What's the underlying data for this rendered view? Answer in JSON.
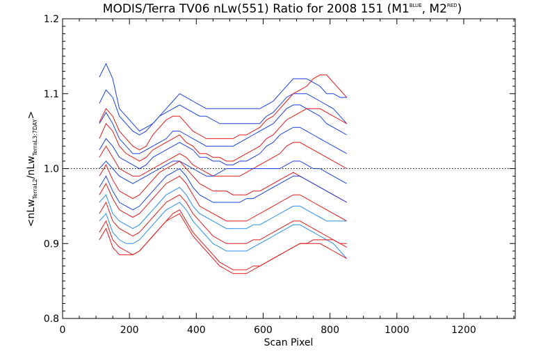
{
  "chart_data": {
    "type": "line",
    "title": "MODIS/Terra TV06 nLw(551) Ratio for 2008 151 (M1",
    "title_sup1": "BLUE",
    "title_mid": ", M2",
    "title_sup2": "RED",
    "title_end": ")",
    "xlabel": "Scan Pixel",
    "ylabel_parts": {
      "a": "<nLw",
      "a_sub": "TerraL2",
      "b": "/nLw",
      "b_sub": "TerraL3:7DAY",
      "c": ">"
    },
    "xlim": [
      0,
      1354
    ],
    "ylim": [
      0.8,
      1.2
    ],
    "x_ticks": [
      "0",
      "200",
      "400",
      "600",
      "800",
      "1000",
      "1200"
    ],
    "x_tick_values": [
      0,
      200,
      400,
      600,
      800,
      1000,
      1200
    ],
    "y_ticks": [
      "0.8",
      "0.9",
      "1.0",
      "1.1",
      "1.2"
    ],
    "y_tick_values": [
      0.8,
      0.9,
      1.0,
      1.1,
      1.2
    ],
    "reference_line": 1.0,
    "grid": false,
    "colors": {
      "blue": "#1a3fe0",
      "red": "#e01818",
      "light_blue": "#2a8fe8",
      "axis": "#000000"
    },
    "x_start": 110,
    "x_step": 20,
    "series": [
      {
        "color": "blue",
        "values": [
          1.122,
          1.14,
          1.12,
          1.08,
          1.07,
          1.06,
          1.05,
          1.055,
          1.06,
          1.07,
          1.08,
          1.09,
          1.1,
          1.095,
          1.09,
          1.085,
          1.08,
          1.08,
          1.08,
          1.08,
          1.08,
          1.08,
          1.08,
          1.08,
          1.08,
          1.085,
          1.09,
          1.1,
          1.11,
          1.12,
          1.12,
          1.12,
          1.115,
          1.11,
          1.1,
          1.1,
          1.095,
          1.095
        ]
      },
      {
        "color": "blue",
        "values": [
          1.087,
          1.105,
          1.095,
          1.07,
          1.06,
          1.05,
          1.045,
          1.05,
          1.06,
          1.07,
          1.075,
          1.08,
          1.085,
          1.08,
          1.075,
          1.07,
          1.07,
          1.065,
          1.06,
          1.06,
          1.06,
          1.06,
          1.06,
          1.06,
          1.06,
          1.07,
          1.075,
          1.085,
          1.095,
          1.1,
          1.1,
          1.1,
          1.095,
          1.09,
          1.085,
          1.08,
          1.07,
          1.06
        ]
      },
      {
        "color": "red",
        "values": [
          1.062,
          1.08,
          1.07,
          1.05,
          1.04,
          1.03,
          1.025,
          1.03,
          1.045,
          1.055,
          1.065,
          1.07,
          1.07,
          1.06,
          1.05,
          1.045,
          1.04,
          1.04,
          1.04,
          1.04,
          1.04,
          1.045,
          1.045,
          1.05,
          1.055,
          1.065,
          1.07,
          1.08,
          1.09,
          1.1,
          1.105,
          1.11,
          1.12,
          1.125,
          1.125,
          1.115,
          1.105,
          1.095
        ]
      },
      {
        "color": "blue",
        "values": [
          1.06,
          1.075,
          1.06,
          1.04,
          1.03,
          1.02,
          1.02,
          1.025,
          1.03,
          1.035,
          1.04,
          1.05,
          1.05,
          1.045,
          1.04,
          1.035,
          1.03,
          1.03,
          1.03,
          1.03,
          1.03,
          1.035,
          1.04,
          1.045,
          1.05,
          1.055,
          1.06,
          1.07,
          1.08,
          1.085,
          1.085,
          1.08,
          1.075,
          1.07,
          1.06,
          1.055,
          1.05,
          1.045
        ]
      },
      {
        "color": "red",
        "values": [
          1.04,
          1.06,
          1.05,
          1.03,
          1.02,
          1.015,
          1.01,
          1.015,
          1.025,
          1.03,
          1.035,
          1.04,
          1.045,
          1.035,
          1.03,
          1.02,
          1.02,
          1.015,
          1.015,
          1.01,
          1.01,
          1.015,
          1.02,
          1.025,
          1.03,
          1.04,
          1.045,
          1.055,
          1.065,
          1.07,
          1.075,
          1.08,
          1.08,
          1.08,
          1.075,
          1.07,
          1.065,
          1.06
        ]
      },
      {
        "color": "blue",
        "values": [
          1.025,
          1.04,
          1.03,
          1.015,
          1.01,
          1.005,
          1.0,
          1.005,
          1.015,
          1.02,
          1.025,
          1.03,
          1.035,
          1.03,
          1.025,
          1.015,
          1.015,
          1.01,
          1.01,
          1.005,
          1.005,
          1.01,
          1.01,
          1.015,
          1.02,
          1.03,
          1.035,
          1.045,
          1.05,
          1.055,
          1.055,
          1.05,
          1.045,
          1.04,
          1.035,
          1.03,
          1.025,
          1.02
        ]
      },
      {
        "color": "red",
        "values": [
          1.015,
          1.03,
          1.015,
          1.0,
          0.995,
          0.99,
          0.99,
          0.995,
          1.0,
          1.005,
          1.01,
          1.015,
          1.02,
          1.015,
          1.005,
          1.0,
          0.995,
          0.99,
          0.99,
          0.99,
          0.99,
          0.99,
          0.995,
          1.0,
          1.005,
          1.01,
          1.015,
          1.02,
          1.03,
          1.035,
          1.035,
          1.03,
          1.025,
          1.02,
          1.015,
          1.01,
          1.005,
          1.0
        ]
      },
      {
        "color": "blue",
        "values": [
          1.0,
          1.01,
          1.0,
          0.99,
          0.985,
          0.98,
          0.985,
          0.99,
          0.995,
          1.0,
          1.005,
          1.01,
          1.01,
          1.005,
          1.0,
          0.995,
          0.99,
          0.99,
          0.995,
          1.0,
          1.0,
          1.0,
          1.0,
          1.0,
          1.0,
          1.0,
          1.0,
          1.0,
          1.005,
          1.01,
          1.01,
          1.005,
          1.0,
          1.0,
          0.995,
          0.99,
          0.985,
          0.98
        ]
      },
      {
        "color": "red",
        "values": [
          0.99,
          1.005,
          0.985,
          0.97,
          0.965,
          0.96,
          0.965,
          0.975,
          0.985,
          0.995,
          1.0,
          1.005,
          1.01,
          1.0,
          0.99,
          0.98,
          0.975,
          0.97,
          0.97,
          0.97,
          0.965,
          0.965,
          0.965,
          0.97,
          0.97,
          0.975,
          0.98,
          0.985,
          0.99,
          0.995,
          0.99,
          0.985,
          0.98,
          0.975,
          0.97,
          0.965,
          0.96,
          0.955
        ]
      },
      {
        "color": "blue",
        "values": [
          0.975,
          0.99,
          0.97,
          0.955,
          0.95,
          0.945,
          0.95,
          0.96,
          0.97,
          0.98,
          0.99,
          0.995,
          1.0,
          0.99,
          0.975,
          0.965,
          0.96,
          0.955,
          0.955,
          0.955,
          0.955,
          0.955,
          0.96,
          0.96,
          0.965,
          0.97,
          0.975,
          0.98,
          0.985,
          0.99,
          0.99,
          0.985,
          0.98,
          0.975,
          0.97,
          0.965,
          0.96,
          0.955
        ]
      },
      {
        "color": "red",
        "values": [
          0.965,
          0.98,
          0.96,
          0.945,
          0.94,
          0.935,
          0.94,
          0.95,
          0.96,
          0.97,
          0.98,
          0.985,
          0.99,
          0.98,
          0.965,
          0.95,
          0.945,
          0.94,
          0.935,
          0.93,
          0.93,
          0.93,
          0.93,
          0.935,
          0.94,
          0.945,
          0.95,
          0.955,
          0.96,
          0.965,
          0.965,
          0.96,
          0.955,
          0.95,
          0.945,
          0.94,
          0.935,
          0.93
        ]
      },
      {
        "color": "light_blue",
        "values": [
          0.955,
          0.965,
          0.94,
          0.93,
          0.925,
          0.92,
          0.925,
          0.935,
          0.945,
          0.955,
          0.965,
          0.97,
          0.975,
          0.965,
          0.95,
          0.94,
          0.935,
          0.93,
          0.925,
          0.92,
          0.92,
          0.92,
          0.92,
          0.925,
          0.925,
          0.93,
          0.935,
          0.94,
          0.945,
          0.95,
          0.95,
          0.945,
          0.94,
          0.935,
          0.93,
          0.93,
          0.93,
          0.93
        ]
      },
      {
        "color": "red",
        "values": [
          0.94,
          0.955,
          0.93,
          0.92,
          0.915,
          0.91,
          0.915,
          0.925,
          0.935,
          0.945,
          0.955,
          0.96,
          0.965,
          0.955,
          0.94,
          0.93,
          0.92,
          0.91,
          0.905,
          0.9,
          0.9,
          0.9,
          0.9,
          0.905,
          0.905,
          0.91,
          0.915,
          0.92,
          0.925,
          0.93,
          0.93,
          0.925,
          0.92,
          0.915,
          0.91,
          0.905,
          0.9,
          0.9
        ]
      },
      {
        "color": "light_blue",
        "values": [
          0.93,
          0.94,
          0.915,
          0.905,
          0.9,
          0.9,
          0.905,
          0.915,
          0.925,
          0.935,
          0.945,
          0.95,
          0.955,
          0.945,
          0.93,
          0.92,
          0.91,
          0.9,
          0.895,
          0.89,
          0.89,
          0.89,
          0.89,
          0.895,
          0.9,
          0.905,
          0.91,
          0.915,
          0.92,
          0.925,
          0.925,
          0.92,
          0.915,
          0.91,
          0.905,
          0.9,
          0.89,
          0.88
        ]
      },
      {
        "color": "red",
        "values": [
          0.915,
          0.93,
          0.905,
          0.895,
          0.89,
          0.885,
          0.89,
          0.9,
          0.91,
          0.92,
          0.93,
          0.94,
          0.945,
          0.93,
          0.915,
          0.905,
          0.895,
          0.885,
          0.875,
          0.87,
          0.865,
          0.865,
          0.865,
          0.87,
          0.87,
          0.875,
          0.88,
          0.885,
          0.89,
          0.895,
          0.9,
          0.9,
          0.905,
          0.905,
          0.905,
          0.905,
          0.9,
          0.895
        ]
      },
      {
        "color": "red",
        "values": [
          0.905,
          0.92,
          0.895,
          0.885,
          0.885,
          0.885,
          0.89,
          0.9,
          0.91,
          0.92,
          0.93,
          0.935,
          0.94,
          0.925,
          0.91,
          0.9,
          0.89,
          0.88,
          0.87,
          0.865,
          0.86,
          0.86,
          0.86,
          0.865,
          0.87,
          0.875,
          0.88,
          0.885,
          0.89,
          0.895,
          0.9,
          0.9,
          0.9,
          0.9,
          0.895,
          0.89,
          0.885,
          0.88
        ]
      }
    ]
  }
}
